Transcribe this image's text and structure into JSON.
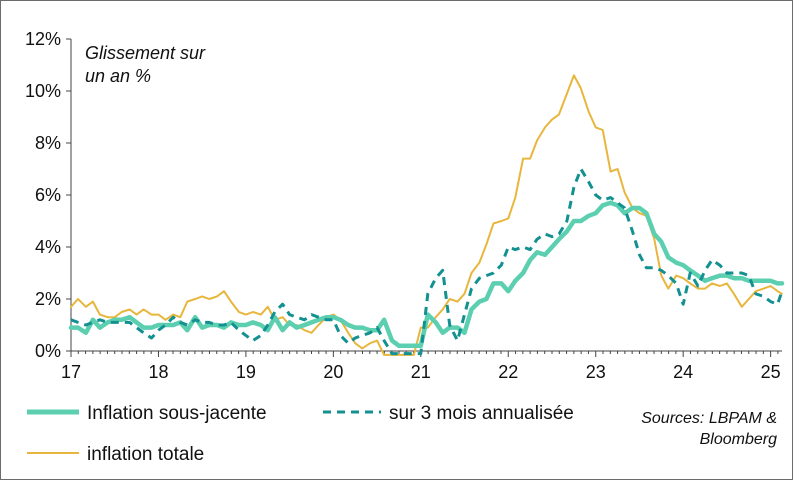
{
  "chart_data": {
    "type": "line",
    "note_lines": [
      "Glissement sur",
      "un an %"
    ],
    "xlabel": "",
    "ylabel": "",
    "x_tick_labels": [
      "17",
      "18",
      "19",
      "20",
      "21",
      "22",
      "23",
      "24",
      "25"
    ],
    "x_tick_values": [
      2017,
      2018,
      2019,
      2020,
      2021,
      2022,
      2023,
      2024,
      2025
    ],
    "xlim": [
      2017,
      2025.13
    ],
    "y_tick_labels": [
      "0%",
      "2%",
      "4%",
      "6%",
      "8%",
      "10%",
      "12%"
    ],
    "y_tick_values": [
      0,
      2,
      4,
      6,
      8,
      10,
      12
    ],
    "ylim": [
      0,
      12
    ],
    "source_lines": [
      "Sources: LBPAM &",
      "Bloomberg"
    ],
    "legend": [
      {
        "series": "Inflation sous-jacente",
        "label": "Inflation sous-jacente"
      },
      {
        "series": "sur 3 mois annualisée",
        "label": "sur 3 mois annualisée"
      },
      {
        "series": "inflation totale",
        "label": "inflation totale"
      }
    ],
    "series": [
      {
        "name": "Inflation sous-jacente",
        "color": "#5ccfb0",
        "style": "solid-thick",
        "points": [
          [
            2017.0,
            0.9
          ],
          [
            2017.08,
            0.9
          ],
          [
            2017.17,
            0.7
          ],
          [
            2017.25,
            1.2
          ],
          [
            2017.33,
            0.9
          ],
          [
            2017.42,
            1.1
          ],
          [
            2017.5,
            1.2
          ],
          [
            2017.58,
            1.2
          ],
          [
            2017.67,
            1.3
          ],
          [
            2017.75,
            1.1
          ],
          [
            2017.83,
            0.9
          ],
          [
            2017.92,
            0.9
          ],
          [
            2018.0,
            1.0
          ],
          [
            2018.08,
            1.0
          ],
          [
            2018.17,
            1.0
          ],
          [
            2018.25,
            1.1
          ],
          [
            2018.33,
            0.8
          ],
          [
            2018.42,
            1.3
          ],
          [
            2018.5,
            0.9
          ],
          [
            2018.58,
            1.0
          ],
          [
            2018.67,
            1.0
          ],
          [
            2018.75,
            0.9
          ],
          [
            2018.83,
            1.1
          ],
          [
            2018.92,
            1.0
          ],
          [
            2019.0,
            1.0
          ],
          [
            2019.08,
            1.1
          ],
          [
            2019.17,
            1.0
          ],
          [
            2019.25,
            0.8
          ],
          [
            2019.33,
            1.3
          ],
          [
            2019.42,
            0.8
          ],
          [
            2019.5,
            1.1
          ],
          [
            2019.58,
            0.9
          ],
          [
            2019.67,
            1.0
          ],
          [
            2019.75,
            1.1
          ],
          [
            2019.83,
            1.2
          ],
          [
            2019.92,
            1.3
          ],
          [
            2020.0,
            1.3
          ],
          [
            2020.08,
            1.2
          ],
          [
            2020.17,
            1.0
          ],
          [
            2020.25,
            0.9
          ],
          [
            2020.33,
            0.9
          ],
          [
            2020.42,
            0.8
          ],
          [
            2020.5,
            0.8
          ],
          [
            2020.58,
            1.2
          ],
          [
            2020.67,
            0.4
          ],
          [
            2020.75,
            0.2
          ],
          [
            2020.83,
            0.2
          ],
          [
            2020.92,
            0.2
          ],
          [
            2021.0,
            0.2
          ],
          [
            2021.08,
            1.4
          ],
          [
            2021.17,
            1.1
          ],
          [
            2021.25,
            0.7
          ],
          [
            2021.33,
            0.9
          ],
          [
            2021.42,
            0.9
          ],
          [
            2021.5,
            0.7
          ],
          [
            2021.58,
            1.6
          ],
          [
            2021.67,
            1.9
          ],
          [
            2021.75,
            2.0
          ],
          [
            2021.83,
            2.6
          ],
          [
            2021.92,
            2.6
          ],
          [
            2022.0,
            2.3
          ],
          [
            2022.08,
            2.7
          ],
          [
            2022.17,
            3.0
          ],
          [
            2022.25,
            3.5
          ],
          [
            2022.33,
            3.8
          ],
          [
            2022.42,
            3.7
          ],
          [
            2022.5,
            4.0
          ],
          [
            2022.58,
            4.3
          ],
          [
            2022.67,
            4.6
          ],
          [
            2022.75,
            5.0
          ],
          [
            2022.83,
            5.0
          ],
          [
            2022.92,
            5.2
          ],
          [
            2023.0,
            5.3
          ],
          [
            2023.08,
            5.6
          ],
          [
            2023.17,
            5.7
          ],
          [
            2023.25,
            5.6
          ],
          [
            2023.33,
            5.3
          ],
          [
            2023.42,
            5.5
          ],
          [
            2023.5,
            5.5
          ],
          [
            2023.58,
            5.3
          ],
          [
            2023.67,
            4.5
          ],
          [
            2023.75,
            4.2
          ],
          [
            2023.83,
            3.6
          ],
          [
            2023.92,
            3.4
          ],
          [
            2024.0,
            3.3
          ],
          [
            2024.08,
            3.1
          ],
          [
            2024.17,
            2.9
          ],
          [
            2024.25,
            2.7
          ],
          [
            2024.33,
            2.8
          ],
          [
            2024.42,
            2.9
          ],
          [
            2024.5,
            2.9
          ],
          [
            2024.58,
            2.8
          ],
          [
            2024.67,
            2.8
          ],
          [
            2024.75,
            2.7
          ],
          [
            2024.83,
            2.7
          ],
          [
            2024.92,
            2.7
          ],
          [
            2025.0,
            2.7
          ],
          [
            2025.08,
            2.6
          ],
          [
            2025.13,
            2.6
          ]
        ]
      },
      {
        "name": "sur 3 mois annualisée",
        "color": "#139090",
        "style": "dashed",
        "points": [
          [
            2017.0,
            1.2
          ],
          [
            2017.08,
            1.1
          ],
          [
            2017.17,
            1.0
          ],
          [
            2017.25,
            1.1
          ],
          [
            2017.33,
            1.2
          ],
          [
            2017.42,
            1.1
          ],
          [
            2017.5,
            1.1
          ],
          [
            2017.58,
            1.1
          ],
          [
            2017.67,
            1.1
          ],
          [
            2017.75,
            0.9
          ],
          [
            2017.83,
            0.7
          ],
          [
            2017.92,
            0.5
          ],
          [
            2018.0,
            0.8
          ],
          [
            2018.08,
            1.0
          ],
          [
            2018.17,
            1.3
          ],
          [
            2018.25,
            1.1
          ],
          [
            2018.33,
            1.0
          ],
          [
            2018.42,
            1.2
          ],
          [
            2018.5,
            1.1
          ],
          [
            2018.58,
            1.1
          ],
          [
            2018.67,
            1.0
          ],
          [
            2018.75,
            1.0
          ],
          [
            2018.83,
            1.1
          ],
          [
            2018.92,
            0.8
          ],
          [
            2019.0,
            0.6
          ],
          [
            2019.08,
            0.4
          ],
          [
            2019.17,
            0.6
          ],
          [
            2019.25,
            1.0
          ],
          [
            2019.33,
            1.5
          ],
          [
            2019.42,
            1.8
          ],
          [
            2019.5,
            1.4
          ],
          [
            2019.58,
            1.3
          ],
          [
            2019.67,
            1.2
          ],
          [
            2019.75,
            1.4
          ],
          [
            2019.83,
            1.3
          ],
          [
            2019.92,
            1.2
          ],
          [
            2020.0,
            1.2
          ],
          [
            2020.08,
            0.6
          ],
          [
            2020.17,
            0.3
          ],
          [
            2020.25,
            0.5
          ],
          [
            2020.33,
            0.6
          ],
          [
            2020.42,
            0.7
          ],
          [
            2020.5,
            0.9
          ],
          [
            2020.58,
            0.4
          ],
          [
            2020.67,
            -0.1
          ],
          [
            2020.75,
            -0.1
          ],
          [
            2020.83,
            -0.1
          ],
          [
            2020.92,
            -0.1
          ],
          [
            2021.0,
            -0.1
          ],
          [
            2021.08,
            2.2
          ],
          [
            2021.17,
            2.8
          ],
          [
            2021.25,
            3.1
          ],
          [
            2021.33,
            1.0
          ],
          [
            2021.42,
            0.4
          ],
          [
            2021.5,
            1.4
          ],
          [
            2021.58,
            2.4
          ],
          [
            2021.67,
            2.8
          ],
          [
            2021.75,
            2.9
          ],
          [
            2021.83,
            3.0
          ],
          [
            2021.92,
            3.3
          ],
          [
            2022.0,
            4.0
          ],
          [
            2022.08,
            3.9
          ],
          [
            2022.17,
            4.0
          ],
          [
            2022.25,
            3.9
          ],
          [
            2022.33,
            4.3
          ],
          [
            2022.42,
            4.5
          ],
          [
            2022.5,
            4.4
          ],
          [
            2022.58,
            4.5
          ],
          [
            2022.67,
            5.0
          ],
          [
            2022.75,
            6.3
          ],
          [
            2022.83,
            7.0
          ],
          [
            2022.92,
            6.5
          ],
          [
            2023.0,
            6.0
          ],
          [
            2023.08,
            5.8
          ],
          [
            2023.17,
            5.9
          ],
          [
            2023.25,
            5.7
          ],
          [
            2023.33,
            5.5
          ],
          [
            2023.42,
            4.6
          ],
          [
            2023.5,
            3.7
          ],
          [
            2023.58,
            3.2
          ],
          [
            2023.67,
            3.2
          ],
          [
            2023.75,
            3.1
          ],
          [
            2023.83,
            2.9
          ],
          [
            2023.92,
            2.6
          ],
          [
            2024.0,
            1.8
          ],
          [
            2024.08,
            3.0
          ],
          [
            2024.17,
            2.5
          ],
          [
            2024.25,
            3.1
          ],
          [
            2024.33,
            3.5
          ],
          [
            2024.42,
            3.3
          ],
          [
            2024.5,
            3.0
          ],
          [
            2024.58,
            3.0
          ],
          [
            2024.67,
            3.0
          ],
          [
            2024.75,
            2.9
          ],
          [
            2024.83,
            2.2
          ],
          [
            2024.92,
            2.1
          ],
          [
            2025.0,
            1.9
          ],
          [
            2025.08,
            1.8
          ],
          [
            2025.13,
            2.3
          ]
        ]
      },
      {
        "name": "inflation totale",
        "color": "#e8b63c",
        "style": "solid-thin",
        "points": [
          [
            2017.0,
            1.7
          ],
          [
            2017.08,
            2.0
          ],
          [
            2017.17,
            1.7
          ],
          [
            2017.25,
            1.9
          ],
          [
            2017.33,
            1.4
          ],
          [
            2017.42,
            1.3
          ],
          [
            2017.5,
            1.3
          ],
          [
            2017.58,
            1.5
          ],
          [
            2017.67,
            1.6
          ],
          [
            2017.75,
            1.4
          ],
          [
            2017.83,
            1.6
          ],
          [
            2017.92,
            1.4
          ],
          [
            2018.0,
            1.4
          ],
          [
            2018.08,
            1.2
          ],
          [
            2018.17,
            1.4
          ],
          [
            2018.25,
            1.3
          ],
          [
            2018.33,
            1.9
          ],
          [
            2018.42,
            2.0
          ],
          [
            2018.5,
            2.1
          ],
          [
            2018.58,
            2.0
          ],
          [
            2018.67,
            2.1
          ],
          [
            2018.75,
            2.3
          ],
          [
            2018.83,
            1.9
          ],
          [
            2018.92,
            1.5
          ],
          [
            2019.0,
            1.4
          ],
          [
            2019.08,
            1.5
          ],
          [
            2019.17,
            1.4
          ],
          [
            2019.25,
            1.7
          ],
          [
            2019.33,
            1.2
          ],
          [
            2019.42,
            1.3
          ],
          [
            2019.5,
            1.0
          ],
          [
            2019.58,
            1.0
          ],
          [
            2019.67,
            0.8
          ],
          [
            2019.75,
            0.7
          ],
          [
            2019.83,
            1.0
          ],
          [
            2019.92,
            1.3
          ],
          [
            2020.0,
            1.4
          ],
          [
            2020.08,
            1.2
          ],
          [
            2020.17,
            0.7
          ],
          [
            2020.25,
            0.3
          ],
          [
            2020.33,
            0.1
          ],
          [
            2020.42,
            0.3
          ],
          [
            2020.5,
            0.4
          ],
          [
            2020.58,
            -0.2
          ],
          [
            2020.67,
            -0.3
          ],
          [
            2020.75,
            -0.3
          ],
          [
            2020.83,
            -0.3
          ],
          [
            2020.92,
            -0.3
          ],
          [
            2021.0,
            0.9
          ],
          [
            2021.08,
            0.9
          ],
          [
            2021.17,
            1.3
          ],
          [
            2021.25,
            1.6
          ],
          [
            2021.33,
            2.0
          ],
          [
            2021.42,
            1.9
          ],
          [
            2021.5,
            2.2
          ],
          [
            2021.58,
            3.0
          ],
          [
            2021.67,
            3.4
          ],
          [
            2021.75,
            4.1
          ],
          [
            2021.83,
            4.9
          ],
          [
            2021.92,
            5.0
          ],
          [
            2022.0,
            5.1
          ],
          [
            2022.08,
            5.9
          ],
          [
            2022.17,
            7.4
          ],
          [
            2022.25,
            7.4
          ],
          [
            2022.33,
            8.1
          ],
          [
            2022.42,
            8.6
          ],
          [
            2022.5,
            8.9
          ],
          [
            2022.58,
            9.1
          ],
          [
            2022.67,
            9.9
          ],
          [
            2022.75,
            10.6
          ],
          [
            2022.83,
            10.1
          ],
          [
            2022.92,
            9.2
          ],
          [
            2023.0,
            8.6
          ],
          [
            2023.08,
            8.5
          ],
          [
            2023.17,
            6.9
          ],
          [
            2023.25,
            7.0
          ],
          [
            2023.33,
            6.1
          ],
          [
            2023.42,
            5.5
          ],
          [
            2023.5,
            5.3
          ],
          [
            2023.58,
            5.2
          ],
          [
            2023.67,
            4.3
          ],
          [
            2023.75,
            2.9
          ],
          [
            2023.83,
            2.4
          ],
          [
            2023.92,
            2.9
          ],
          [
            2024.0,
            2.8
          ],
          [
            2024.08,
            2.6
          ],
          [
            2024.17,
            2.4
          ],
          [
            2024.25,
            2.4
          ],
          [
            2024.33,
            2.6
          ],
          [
            2024.42,
            2.5
          ],
          [
            2024.5,
            2.6
          ],
          [
            2024.58,
            2.2
          ],
          [
            2024.67,
            1.7
          ],
          [
            2024.75,
            2.0
          ],
          [
            2024.83,
            2.3
          ],
          [
            2024.92,
            2.4
          ],
          [
            2025.0,
            2.5
          ],
          [
            2025.08,
            2.3
          ],
          [
            2025.13,
            2.2
          ]
        ]
      }
    ]
  }
}
